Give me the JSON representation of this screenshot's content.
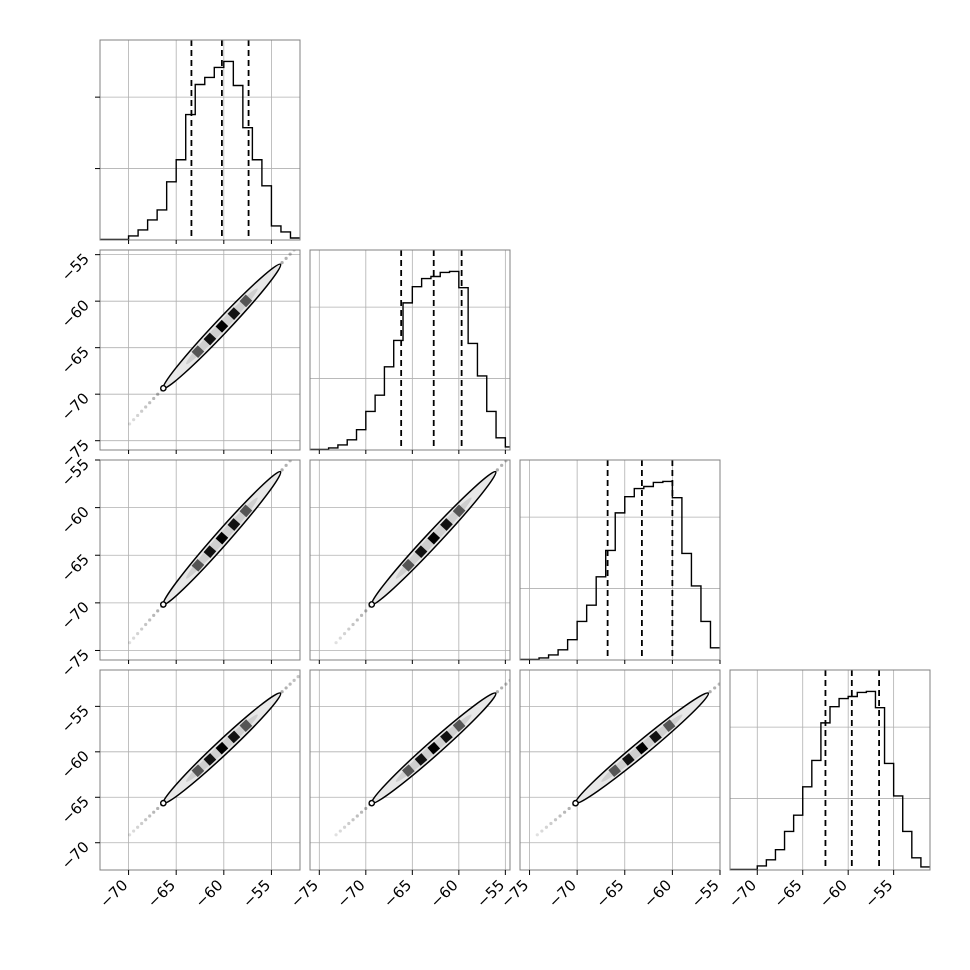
{
  "chart_data": {
    "type": "corner",
    "n_params": 4,
    "grid": true,
    "colors": {
      "line": "#000000",
      "grid": "#b0b0b0",
      "frame": "#808080",
      "contour_fill": "#e8e8e8"
    },
    "ranges": [
      [
        -73,
        -52
      ],
      [
        -76,
        -54.5
      ],
      [
        -76,
        -55
      ],
      [
        -73,
        -51
      ]
    ],
    "ticks": [
      [
        -70,
        -65,
        -60,
        -55
      ],
      [
        -75,
        -70,
        -65,
        -60,
        -55
      ],
      [
        -75,
        -70,
        -65,
        -60,
        -55
      ],
      [
        -70,
        -65,
        -60,
        -55
      ]
    ],
    "tick_labels": [
      [
        "−70",
        "−65",
        "−60",
        "−55"
      ],
      [
        "−75",
        "−70",
        "−65",
        "−60",
        "−55"
      ],
      [
        "−75",
        "−70",
        "−65",
        "−60",
        "−55"
      ],
      [
        "−70",
        "−65",
        "−60",
        "−55"
      ]
    ],
    "histograms": [
      {
        "bins": [
          -73,
          -72,
          -71,
          -70,
          -69,
          -68,
          -67,
          -66,
          -65,
          -64,
          -63,
          -62,
          -61,
          -60,
          -59,
          -58,
          -57,
          -56,
          -55,
          -54,
          -53,
          -52
        ],
        "counts": [
          0.5,
          0.5,
          0.5,
          4,
          10,
          20,
          30,
          58,
          80,
          125,
          155,
          162,
          172,
          178,
          154,
          112,
          80,
          54,
          14,
          8,
          2
        ],
        "quantiles": [
          -63.4,
          -60.2,
          -57.4
        ]
      },
      {
        "bins": [
          -76,
          -75,
          -74,
          -73,
          -72,
          -71,
          -70,
          -69,
          -68,
          -67,
          -66,
          -65,
          -64,
          -63,
          -62,
          -61,
          -60,
          -59,
          -58,
          -57,
          -56,
          -55,
          -54.5
        ],
        "counts": [
          0.5,
          0.5,
          2,
          5,
          10,
          20,
          38,
          54,
          82,
          108,
          145,
          161,
          169,
          171,
          175,
          176,
          160,
          105,
          73,
          38,
          12,
          3
        ],
        "quantiles": [
          -66.2,
          -62.7,
          -59.7
        ]
      },
      {
        "bins": [
          -76,
          -75,
          -74,
          -73,
          -72,
          -71,
          -70,
          -69,
          -68,
          -67,
          -66,
          -65,
          -64,
          -63,
          -62,
          -61,
          -60,
          -59,
          -58,
          -57,
          -56,
          -55
        ],
        "counts": [
          0.5,
          0.5,
          2,
          5,
          10,
          20,
          38,
          54,
          82,
          108,
          145,
          161,
          169,
          171,
          175,
          176,
          160,
          105,
          73,
          38,
          12
        ],
        "quantiles": [
          -66.8,
          -63.2,
          -60.0
        ]
      },
      {
        "bins": [
          -73,
          -72,
          -71,
          -70,
          -69,
          -68,
          -67,
          -66,
          -65,
          -64,
          -63,
          -62,
          -61,
          -60,
          -59,
          -58,
          -57,
          -56,
          -55,
          -54,
          -53,
          -52,
          -51
        ],
        "counts": [
          0.5,
          0.5,
          0.5,
          4,
          10,
          20,
          38,
          54,
          82,
          108,
          145,
          161,
          169,
          171,
          175,
          176,
          160,
          105,
          73,
          38,
          12,
          3
        ],
        "quantiles": [
          -62.5,
          -59.6,
          -56.6
        ]
      }
    ]
  }
}
